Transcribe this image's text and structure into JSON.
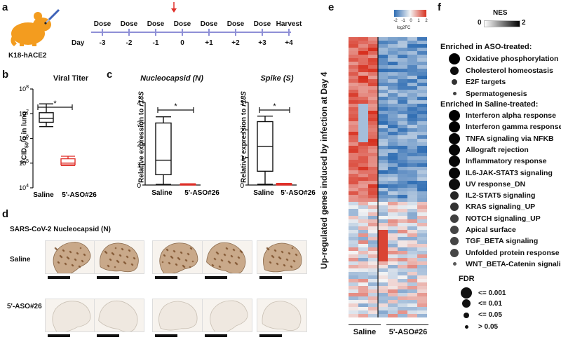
{
  "panels": {
    "a": "a",
    "b": "b",
    "c": "c",
    "d": "d",
    "e": "e",
    "f": "f"
  },
  "panel_a": {
    "mouse_label": "K18-hACE2",
    "day_label": "Day",
    "events": [
      "Dose",
      "Dose",
      "Dose",
      "Dose",
      "Dose",
      "Dose",
      "Dose",
      "Harvest"
    ],
    "days": [
      "-3",
      "-2",
      "-1",
      "0",
      "+1",
      "+2",
      "+3",
      "+4"
    ],
    "infection_day_index": 3,
    "colors": {
      "mouse": "#f39c1f",
      "timeline": "#8e8fd6",
      "arrow": "#e0302a"
    }
  },
  "panel_b": {
    "title": "Viral Titer",
    "ylabel_main": "TCID",
    "ylabel_sub": "50",
    "ylabel_rest": "/g in lung",
    "yticks": [
      {
        "base": "10",
        "exp": "8"
      },
      {
        "base": "10",
        "exp": "7"
      },
      {
        "base": "10",
        "exp": "6"
      },
      {
        "base": "10",
        "exp": "5"
      },
      {
        "base": "10",
        "exp": "4"
      }
    ],
    "groups": [
      "Saline",
      "5'-ASO#26"
    ],
    "sig": "*"
  },
  "panel_c": {
    "plots": [
      {
        "title": "Nucleocapsid (N)",
        "ylabel_pre": "Relative expression to ",
        "ylabel_gene": "r18S",
        "yticks": [
          "4",
          "3",
          "2",
          "1",
          "0"
        ],
        "groups": [
          "Saline",
          "5'-ASO#26"
        ],
        "sig": "*"
      },
      {
        "title": "Spike (S)",
        "ylabel_pre": "Relative expression to ",
        "ylabel_gene": "r18S",
        "yticks": [
          "3",
          "2",
          "1",
          "0"
        ],
        "groups": [
          "Saline",
          "5'-ASO#26"
        ],
        "sig": "*"
      }
    ]
  },
  "panel_d": {
    "title": "SARS-CoV-2 Nucleocapsid (N)",
    "rows": [
      "Saline",
      "5'-ASO#26"
    ]
  },
  "panel_e": {
    "ylabel": "Up-regulated genes induced by infection at Day 4",
    "colorbar_ticks": [
      "-2",
      "-1",
      "0",
      "1",
      "2"
    ],
    "colorbar_label": "log2FC",
    "groups": [
      "Saline",
      "5'-ASO#26"
    ],
    "colors": {
      "low": "#2f6db3",
      "mid": "#f4f4f4",
      "high": "#d7301f"
    }
  },
  "panel_f": {
    "nes_label": "NES",
    "nes_min": "0",
    "nes_max": "2",
    "aso_header": "Enriched in ASO-treated:",
    "aso_sets": [
      {
        "name": "Oxidative phosphorylation",
        "fdr": "<= 0.001",
        "nes": 2.0
      },
      {
        "name": "Cholesterol homeostasis",
        "fdr": "<= 0.01",
        "nes": 1.9
      },
      {
        "name": "E2F targets",
        "fdr": "<= 0.05",
        "nes": 1.6
      },
      {
        "name": "Spermatogenesis",
        "fdr": "> 0.05",
        "nes": 1.5
      }
    ],
    "saline_header": "Enriched in Saline-treated:",
    "saline_sets": [
      {
        "name": "Interferon alpha response",
        "fdr": "<= 0.001",
        "nes": 2.0
      },
      {
        "name": "Interferon gamma response",
        "fdr": "<= 0.001",
        "nes": 2.0
      },
      {
        "name": "TNFA signaling via NFKB",
        "fdr": "<= 0.001",
        "nes": 1.95
      },
      {
        "name": "Allograft rejection",
        "fdr": "<= 0.001",
        "nes": 1.95
      },
      {
        "name": "Inflammatory response",
        "fdr": "<= 0.001",
        "nes": 1.95
      },
      {
        "name": "IL6-JAK-STAT3 signaling",
        "fdr": "<= 0.001",
        "nes": 1.95
      },
      {
        "name": "UV response_DN",
        "fdr": "<= 0.001",
        "nes": 1.9
      },
      {
        "name": "IL2-STAT5 signaling",
        "fdr": "<= 0.01",
        "nes": 1.7
      },
      {
        "name": "KRAS signaling_UP",
        "fdr": "<= 0.01",
        "nes": 1.6
      },
      {
        "name": "NOTCH signaling_UP",
        "fdr": "<= 0.01",
        "nes": 1.5
      },
      {
        "name": "Apical surface",
        "fdr": "<= 0.01",
        "nes": 1.45
      },
      {
        "name": "TGF_BETA signaling",
        "fdr": "<= 0.01",
        "nes": 1.45
      },
      {
        "name": "Unfolded protein response",
        "fdr": "<= 0.01",
        "nes": 1.45
      },
      {
        "name": "WNT_BETA-Catenin signaling",
        "fdr": "> 0.05",
        "nes": 1.3
      }
    ],
    "fdr_title": "FDR",
    "fdr_legend": [
      "<= 0.001",
      "<= 0.01",
      "<= 0.05",
      "> 0.05"
    ]
  },
  "chart_data": [
    {
      "type": "box",
      "title": "Viral Titer",
      "categories": [
        "Saline",
        "5'-ASO#26"
      ],
      "scale": "log10",
      "ylim": [
        10000,
        100000000
      ],
      "series": [
        {
          "name": "Saline",
          "whisker_low": 3000000,
          "q1": 4500000,
          "median": 6500000,
          "q3": 11000000,
          "whisker_high": 25000000,
          "color": "#111111"
        },
        {
          "name": "5'-ASO#26",
          "whisker_low": 80000,
          "q1": 85000,
          "median": 100000,
          "q3": 150000,
          "whisker_high": 190000,
          "color": "#e0302a"
        }
      ],
      "significance": "*"
    },
    {
      "type": "box",
      "title": "Nucleocapsid (N)",
      "categories": [
        "Saline",
        "5'-ASO#26"
      ],
      "ylim": [
        0,
        4
      ],
      "series": [
        {
          "name": "Saline",
          "whisker_low": 0.03,
          "q1": 0.5,
          "median": 1.2,
          "q3": 3.0,
          "whisker_high": 3.3,
          "color": "#111111"
        },
        {
          "name": "5'-ASO#26",
          "whisker_low": 0.0,
          "q1": 0.01,
          "median": 0.02,
          "q3": 0.04,
          "whisker_high": 0.06,
          "color": "#e0302a"
        }
      ],
      "significance": "*"
    },
    {
      "type": "box",
      "title": "Spike (S)",
      "categories": [
        "Saline",
        "5'-ASO#26"
      ],
      "ylim": [
        0,
        3
      ],
      "series": [
        {
          "name": "Saline",
          "whisker_low": 0.03,
          "q1": 0.5,
          "median": 1.4,
          "q3": 2.3,
          "whisker_high": 2.5,
          "color": "#111111"
        },
        {
          "name": "5'-ASO#26",
          "whisker_low": 0.0,
          "q1": 0.01,
          "median": 0.02,
          "q3": 0.04,
          "whisker_high": 0.06,
          "color": "#e0302a"
        }
      ],
      "significance": "*"
    }
  ]
}
